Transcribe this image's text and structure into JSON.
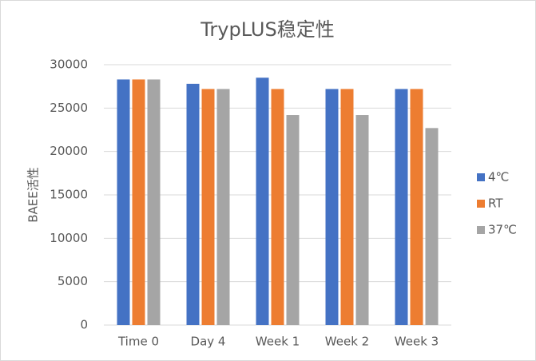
{
  "chart_data": {
    "type": "bar",
    "title": "TrypLUS稳定性",
    "y_label": "BAEE活性",
    "categories": [
      "Time 0",
      "Day 4",
      "Week 1",
      "Week 2",
      "Week 3"
    ],
    "series": [
      {
        "name": "4℃",
        "color": "#4472c4",
        "values": [
          28300,
          27800,
          28500,
          27200,
          27200
        ]
      },
      {
        "name": "RT",
        "color": "#ed7d31",
        "values": [
          28300,
          27200,
          27200,
          27200,
          27200
        ]
      },
      {
        "name": "37℃",
        "color": "#a5a5a5",
        "values": [
          28300,
          27200,
          24200,
          24200,
          22700
        ]
      }
    ],
    "ylim": [
      0,
      30000
    ],
    "yticks": [
      0,
      5000,
      10000,
      15000,
      20000,
      25000,
      30000
    ],
    "grid": true,
    "legend": "right"
  }
}
